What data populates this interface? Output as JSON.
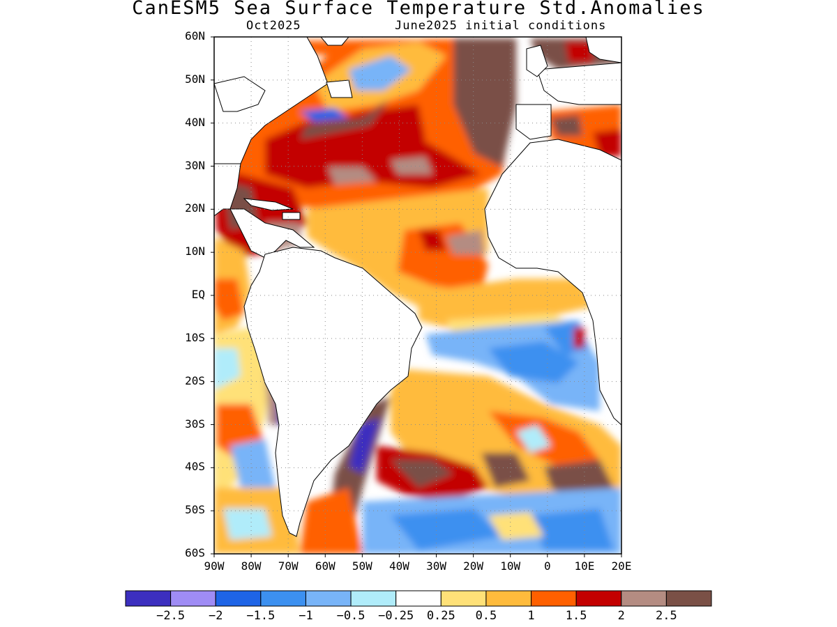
{
  "title": "CanESM5 Sea Surface Temperature Std.Anomalies",
  "subtitle_left": "Oct2025",
  "subtitle_right": "June2025 initial conditions",
  "lat_labels": [
    "60N",
    "50N",
    "40N",
    "30N",
    "20N",
    "10N",
    "EQ",
    "10S",
    "20S",
    "30S",
    "40S",
    "50S",
    "60S"
  ],
  "lon_labels": [
    "90W",
    "80W",
    "70W",
    "60W",
    "50W",
    "40W",
    "30W",
    "20W",
    "10W",
    "0",
    "10E",
    "20E"
  ],
  "extent": {
    "lon": [
      -90,
      20
    ],
    "lat": [
      -60,
      60
    ]
  },
  "gridlines": "dotted",
  "colorbar": {
    "colors": [
      "#3c2fbf",
      "#9f8cf5",
      "#1e64e6",
      "#3c90f0",
      "#78b4f8",
      "#b0ecfa",
      "#ffffff",
      "#ffe178",
      "#ffbb3c",
      "#ff6000",
      "#c30000",
      "#b48c82",
      "#7a5046"
    ],
    "labels": [
      "−2.5",
      "−2",
      "−1.5",
      "−1",
      "−0.5",
      "−0.25",
      "0.25",
      "0.5",
      "1",
      "1.5",
      "2",
      "2.5"
    ]
  }
}
